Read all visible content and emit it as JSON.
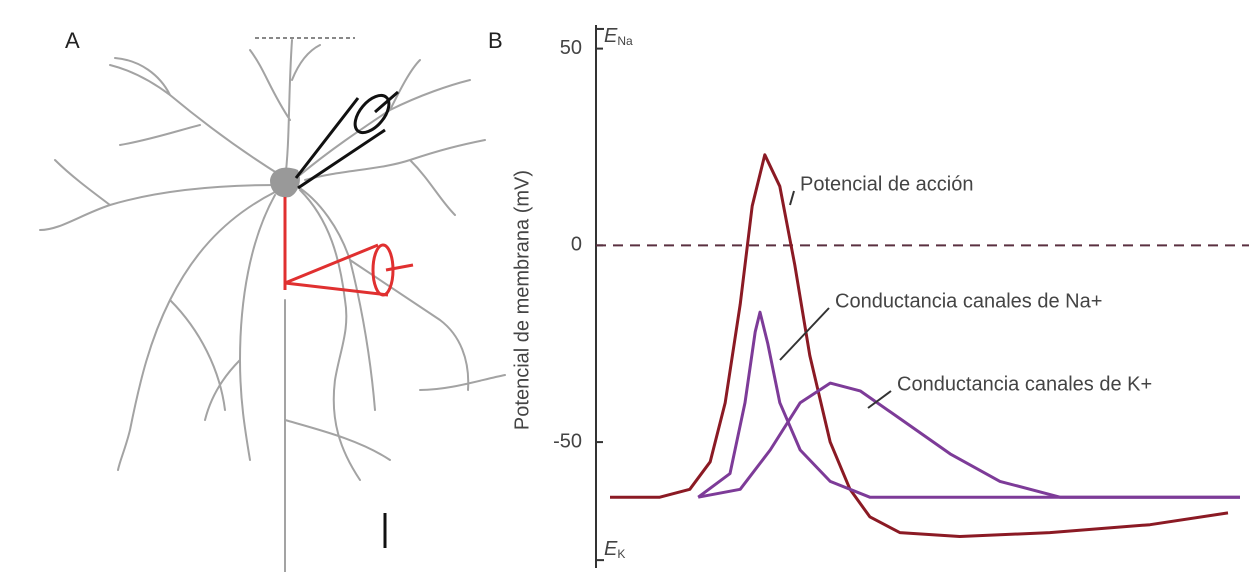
{
  "panels": {
    "a_label": "A",
    "b_label": "B"
  },
  "chart_data": {
    "type": "line",
    "y_label": "Potencial de membrana (mV)",
    "xlim": [
      0,
      10.5
    ],
    "ylim": [
      -82,
      56
    ],
    "yticks": [
      -50,
      0,
      50
    ],
    "e_ticks": [
      {
        "value": 55,
        "letter": "E",
        "sub": "Na"
      },
      {
        "value": -80,
        "letter": "E",
        "sub": "K"
      }
    ],
    "reference_line": 0,
    "series": [
      {
        "name": "Potencial de acción",
        "color": "#8b1a24",
        "x": [
          0,
          0.83,
          1.33,
          1.67,
          1.92,
          2.17,
          2.37,
          2.58,
          2.83,
          3.08,
          3.33,
          3.67,
          4.0,
          4.33,
          4.83,
          5.83,
          7.33,
          9.0,
          10.3
        ],
        "values": [
          -64,
          -64,
          -62,
          -55,
          -40,
          -15,
          10,
          23,
          15,
          -5,
          -28,
          -50,
          -62,
          -69,
          -73,
          -74,
          -73,
          -71,
          -68
        ]
      },
      {
        "name": "Conductancia canales de Na+",
        "color": "#7d3b98",
        "x": [
          1.47,
          2.0,
          2.25,
          2.42,
          2.5,
          2.63,
          2.83,
          3.17,
          3.67,
          4.33,
          10.5
        ],
        "values": [
          -64,
          -58,
          -40,
          -22,
          -17,
          -25,
          -40,
          -52,
          -60,
          -64,
          -64
        ]
      },
      {
        "name": "Conductancia canales de K+",
        "color": "#7d3b98",
        "x": [
          1.47,
          2.17,
          2.67,
          3.17,
          3.67,
          4.17,
          4.83,
          5.67,
          6.5,
          7.5,
          10.5
        ],
        "values": [
          -64,
          -62,
          -52,
          -40,
          -35,
          -37,
          -44,
          -53,
          -60,
          -64,
          -64
        ]
      }
    ]
  }
}
